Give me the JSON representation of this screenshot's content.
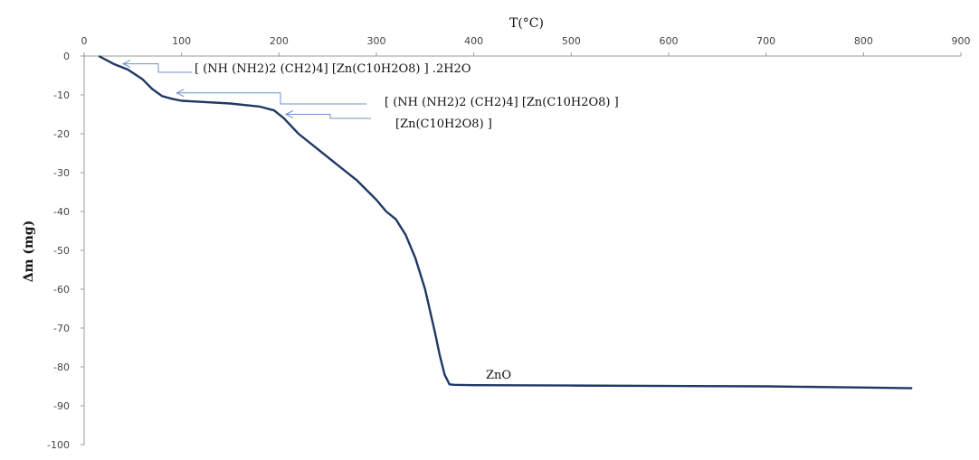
{
  "chart_data": {
    "type": "line",
    "title": "",
    "xlabel": "T(°C)",
    "ylabel": "Δm (mg)",
    "xlim": [
      0,
      900
    ],
    "ylim": [
      -100,
      0
    ],
    "x_ticks": [
      0,
      100,
      200,
      300,
      400,
      500,
      600,
      700,
      800,
      900
    ],
    "y_ticks": [
      0,
      -10,
      -20,
      -30,
      -40,
      -50,
      -60,
      -70,
      -80,
      -90,
      -100
    ],
    "grid": false,
    "legend": "none",
    "series": [
      {
        "color": "#1f3864",
        "x": [
          15,
          30,
          45,
          60,
          70,
          80,
          90,
          100,
          120,
          150,
          180,
          195,
          205,
          220,
          240,
          260,
          280,
          300,
          310,
          320,
          330,
          340,
          350,
          360,
          365,
          370,
          375,
          380,
          400,
          500,
          600,
          700,
          800,
          850
        ],
        "y": [
          0,
          -2,
          -3.5,
          -6,
          -8.5,
          -10.3,
          -11,
          -11.5,
          -11.8,
          -12.2,
          -13,
          -14,
          -16,
          -20,
          -24,
          -28,
          -32,
          -37,
          -40,
          -42,
          -46,
          -52,
          -60,
          -71,
          -77,
          -82,
          -84.5,
          -84.6,
          -84.7,
          -84.8,
          -84.9,
          -85,
          -85.3,
          -85.5
        ]
      }
    ],
    "annotations": [
      {
        "label": "[ (NH (NH2)2 (CH2)4] [Zn(C10H2O8) ] .2H2O",
        "x": 40,
        "y": -2
      },
      {
        "label": "[ (NH (NH2)2 (CH2)4] [Zn(C10H2O8) ]",
        "x": 95,
        "y": -9.5
      },
      {
        "label": "[Zn(C10H2O8) ]",
        "x": 205,
        "y": -15
      },
      {
        "label": "ZnO",
        "x": 410,
        "y": -81
      }
    ]
  }
}
